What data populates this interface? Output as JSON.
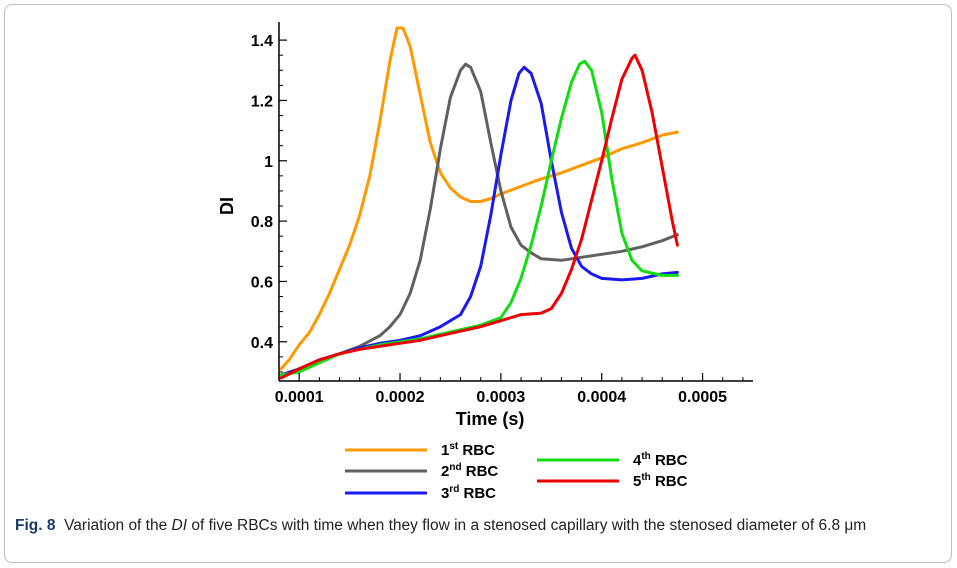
{
  "chart_data": {
    "type": "line",
    "xlabel": "Time (s)",
    "ylabel": "DI",
    "xlim": [
      8e-05,
      0.00055
    ],
    "ylim": [
      0.27,
      1.46
    ],
    "xticks": [
      0.0001,
      0.0002,
      0.0003,
      0.0004,
      0.0005
    ],
    "xtick_labels": [
      "0.0001",
      "0.0002",
      "0.0003",
      "0.0004",
      "0.0005"
    ],
    "yticks": [
      0.4,
      0.6,
      0.8,
      1.0,
      1.2,
      1.4
    ],
    "ytick_labels": [
      "0.4",
      "0.6",
      "0.8",
      "1",
      "1.2",
      "1.4"
    ],
    "grid": false,
    "legend_position": "bottom",
    "series": [
      {
        "name": "1st RBC",
        "legend_base": "1",
        "legend_sup": "st",
        "legend_tail": " RBC",
        "color": "#ff9900",
        "points": [
          [
            8.2e-05,
            0.31
          ],
          [
            9e-05,
            0.34
          ],
          [
            0.0001,
            0.39
          ],
          [
            0.00011,
            0.43
          ],
          [
            0.00012,
            0.49
          ],
          [
            0.00013,
            0.56
          ],
          [
            0.00014,
            0.64
          ],
          [
            0.00015,
            0.72
          ],
          [
            0.00016,
            0.82
          ],
          [
            0.00017,
            0.95
          ],
          [
            0.00018,
            1.13
          ],
          [
            0.00019,
            1.33
          ],
          [
            0.000197,
            1.44
          ],
          [
            0.000203,
            1.44
          ],
          [
            0.00021,
            1.38
          ],
          [
            0.00022,
            1.22
          ],
          [
            0.00023,
            1.06
          ],
          [
            0.00024,
            0.96
          ],
          [
            0.00025,
            0.91
          ],
          [
            0.00026,
            0.88
          ],
          [
            0.00027,
            0.865
          ],
          [
            0.00028,
            0.865
          ],
          [
            0.00029,
            0.875
          ],
          [
            0.0003,
            0.89
          ],
          [
            0.00032,
            0.915
          ],
          [
            0.00034,
            0.94
          ],
          [
            0.00036,
            0.96
          ],
          [
            0.00038,
            0.985
          ],
          [
            0.0004,
            1.01
          ],
          [
            0.00042,
            1.04
          ],
          [
            0.00044,
            1.06
          ],
          [
            0.00046,
            1.085
          ],
          [
            0.000475,
            1.095
          ]
        ]
      },
      {
        "name": "2nd RBC",
        "legend_base": "2",
        "legend_sup": "nd",
        "legend_tail": " RBC",
        "color": "#606060",
        "points": [
          [
            8.2e-05,
            0.29
          ],
          [
            0.0001,
            0.31
          ],
          [
            0.00012,
            0.335
          ],
          [
            0.00014,
            0.36
          ],
          [
            0.00016,
            0.385
          ],
          [
            0.00018,
            0.42
          ],
          [
            0.00019,
            0.45
          ],
          [
            0.0002,
            0.49
          ],
          [
            0.00021,
            0.56
          ],
          [
            0.00022,
            0.67
          ],
          [
            0.00023,
            0.84
          ],
          [
            0.00024,
            1.04
          ],
          [
            0.00025,
            1.21
          ],
          [
            0.00026,
            1.3
          ],
          [
            0.000265,
            1.32
          ],
          [
            0.00027,
            1.31
          ],
          [
            0.00028,
            1.23
          ],
          [
            0.00029,
            1.06
          ],
          [
            0.0003,
            0.9
          ],
          [
            0.00031,
            0.78
          ],
          [
            0.00032,
            0.72
          ],
          [
            0.00033,
            0.695
          ],
          [
            0.00034,
            0.675
          ],
          [
            0.00036,
            0.67
          ],
          [
            0.00038,
            0.68
          ],
          [
            0.0004,
            0.69
          ],
          [
            0.00042,
            0.7
          ],
          [
            0.00044,
            0.715
          ],
          [
            0.00046,
            0.735
          ],
          [
            0.000475,
            0.755
          ]
        ]
      },
      {
        "name": "3rd RBC",
        "legend_base": "3",
        "legend_sup": "rd",
        "legend_tail": " RBC",
        "color": "#1a1aee",
        "points": [
          [
            8.2e-05,
            0.29
          ],
          [
            0.0001,
            0.31
          ],
          [
            0.00012,
            0.34
          ],
          [
            0.00014,
            0.36
          ],
          [
            0.00016,
            0.38
          ],
          [
            0.00018,
            0.395
          ],
          [
            0.0002,
            0.405
          ],
          [
            0.00022,
            0.42
          ],
          [
            0.00024,
            0.45
          ],
          [
            0.00026,
            0.49
          ],
          [
            0.00027,
            0.55
          ],
          [
            0.00028,
            0.65
          ],
          [
            0.00029,
            0.82
          ],
          [
            0.0003,
            1.02
          ],
          [
            0.00031,
            1.2
          ],
          [
            0.000318,
            1.29
          ],
          [
            0.000323,
            1.31
          ],
          [
            0.00033,
            1.29
          ],
          [
            0.00034,
            1.19
          ],
          [
            0.00035,
            1.0
          ],
          [
            0.00036,
            0.83
          ],
          [
            0.00037,
            0.71
          ],
          [
            0.00038,
            0.65
          ],
          [
            0.00039,
            0.625
          ],
          [
            0.0004,
            0.61
          ],
          [
            0.00042,
            0.605
          ],
          [
            0.00044,
            0.61
          ],
          [
            0.00046,
            0.625
          ],
          [
            0.000475,
            0.63
          ]
        ]
      },
      {
        "name": "4th RBC",
        "legend_base": "4",
        "legend_sup": "th",
        "legend_tail": " RBC",
        "color": "#11dd11",
        "points": [
          [
            8.2e-05,
            0.29
          ],
          [
            0.0001,
            0.3
          ],
          [
            0.00012,
            0.33
          ],
          [
            0.00014,
            0.36
          ],
          [
            0.00016,
            0.375
          ],
          [
            0.00018,
            0.39
          ],
          [
            0.0002,
            0.4
          ],
          [
            0.00022,
            0.41
          ],
          [
            0.00024,
            0.425
          ],
          [
            0.00026,
            0.44
          ],
          [
            0.00028,
            0.455
          ],
          [
            0.0003,
            0.48
          ],
          [
            0.00031,
            0.53
          ],
          [
            0.00032,
            0.61
          ],
          [
            0.00033,
            0.72
          ],
          [
            0.00034,
            0.85
          ],
          [
            0.00035,
            1.0
          ],
          [
            0.00036,
            1.14
          ],
          [
            0.00037,
            1.26
          ],
          [
            0.000378,
            1.32
          ],
          [
            0.000383,
            1.33
          ],
          [
            0.00039,
            1.3
          ],
          [
            0.0004,
            1.16
          ],
          [
            0.00041,
            0.94
          ],
          [
            0.00042,
            0.76
          ],
          [
            0.00043,
            0.67
          ],
          [
            0.00044,
            0.635
          ],
          [
            0.00046,
            0.62
          ],
          [
            0.000475,
            0.62
          ]
        ]
      },
      {
        "name": "5th RBC",
        "legend_base": "5",
        "legend_sup": "th",
        "legend_tail": " RBC",
        "color": "#ee0000",
        "points": [
          [
            8.2e-05,
            0.28
          ],
          [
            0.0001,
            0.31
          ],
          [
            0.00012,
            0.34
          ],
          [
            0.00014,
            0.36
          ],
          [
            0.00016,
            0.375
          ],
          [
            0.00018,
            0.385
          ],
          [
            0.0002,
            0.395
          ],
          [
            0.00022,
            0.405
          ],
          [
            0.00024,
            0.42
          ],
          [
            0.00026,
            0.435
          ],
          [
            0.00028,
            0.45
          ],
          [
            0.0003,
            0.47
          ],
          [
            0.00032,
            0.49
          ],
          [
            0.00034,
            0.495
          ],
          [
            0.00035,
            0.51
          ],
          [
            0.00036,
            0.56
          ],
          [
            0.00037,
            0.64
          ],
          [
            0.00038,
            0.74
          ],
          [
            0.00039,
            0.87
          ],
          [
            0.0004,
            1.0
          ],
          [
            0.00041,
            1.14
          ],
          [
            0.00042,
            1.27
          ],
          [
            0.00043,
            1.34
          ],
          [
            0.000433,
            1.35
          ],
          [
            0.00044,
            1.3
          ],
          [
            0.00045,
            1.16
          ],
          [
            0.00046,
            0.98
          ],
          [
            0.00047,
            0.8
          ],
          [
            0.000475,
            0.72
          ]
        ]
      }
    ]
  },
  "caption": {
    "label": "Fig. 8",
    "text_before": "Variation of the ",
    "text_italic": "DI",
    "text_after": " of five RBCs with time when they flow in a stenosed capillary with the stenosed diameter of 6.8 μm"
  }
}
